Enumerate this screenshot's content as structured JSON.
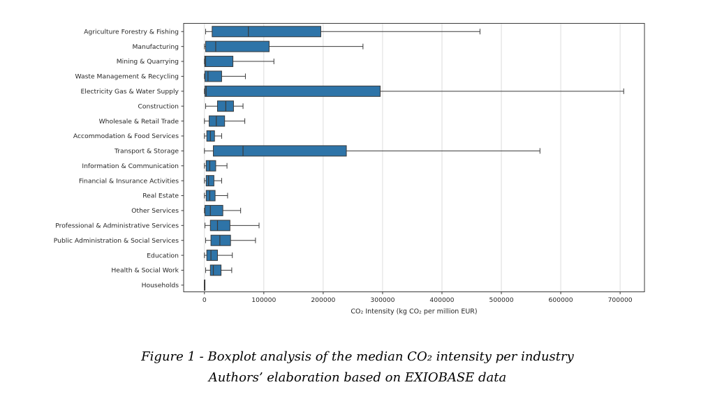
{
  "chart_data": {
    "type": "boxplot",
    "orientation": "horizontal",
    "title": "",
    "xlabel": "CO₂ Intensity (kg CO₂ per million EUR)",
    "ylabel": "",
    "xlim": [
      -35000,
      741000
    ],
    "x_ticks": [
      0,
      100000,
      200000,
      300000,
      400000,
      500000,
      600000,
      700000
    ],
    "x_tick_labels": [
      "0",
      "100000",
      "200000",
      "300000",
      "400000",
      "500000",
      "600000",
      "700000"
    ],
    "grid": "vertical-only",
    "legend": "none",
    "colors": {
      "box_fill": "#2e74a8",
      "line": "#3a3a3a",
      "grid": "#d9d9d9",
      "spine": "#3a3a3a",
      "text": "#262626"
    },
    "boxes": [
      {
        "category": "Agriculture Forestry & Fishing",
        "whisker_low": 2000,
        "q1": 13000,
        "median": 74000,
        "q3": 196000,
        "whisker_high": 464000
      },
      {
        "category": "Manufacturing",
        "whisker_low": 0,
        "q1": 2000,
        "median": 19000,
        "q3": 109000,
        "whisker_high": 267000
      },
      {
        "category": "Mining & Quarrying",
        "whisker_low": 0,
        "q1": 500,
        "median": 2000,
        "q3": 48000,
        "whisker_high": 117000
      },
      {
        "category": "Waste Management & Recycling",
        "whisker_low": 0,
        "q1": 1000,
        "median": 6000,
        "q3": 29000,
        "whisker_high": 69000
      },
      {
        "category": "Electricity Gas & Water Supply",
        "whisker_low": 0,
        "q1": 1000,
        "median": 3000,
        "q3": 296000,
        "whisker_high": 706000
      },
      {
        "category": "Construction",
        "whisker_low": 2000,
        "q1": 22000,
        "median": 36000,
        "q3": 49000,
        "whisker_high": 65000
      },
      {
        "category": "Wholesale & Retail Trade",
        "whisker_low": 0,
        "q1": 8000,
        "median": 20000,
        "q3": 34000,
        "whisker_high": 68000
      },
      {
        "category": "Accommodation & Food Services",
        "whisker_low": 0,
        "q1": 4000,
        "median": 10000,
        "q3": 17000,
        "whisker_high": 29000
      },
      {
        "category": "Transport & Storage",
        "whisker_low": 0,
        "q1": 15000,
        "median": 65000,
        "q3": 239000,
        "whisker_high": 565000
      },
      {
        "category": "Information & Communication",
        "whisker_low": 0,
        "q1": 3000,
        "median": 9000,
        "q3": 19000,
        "whisker_high": 38000
      },
      {
        "category": "Financial & Insurance Activities",
        "whisker_low": 0,
        "q1": 3000,
        "median": 7000,
        "q3": 16000,
        "whisker_high": 29000
      },
      {
        "category": "Real Estate",
        "whisker_low": 0,
        "q1": 3000,
        "median": 9000,
        "q3": 18000,
        "whisker_high": 39000
      },
      {
        "category": "Other Services",
        "whisker_low": 0,
        "q1": 1000,
        "median": 10000,
        "q3": 31000,
        "whisker_high": 61000
      },
      {
        "category": "Professional & Administrative Services",
        "whisker_low": 1000,
        "q1": 10000,
        "median": 22000,
        "q3": 43000,
        "whisker_high": 92000
      },
      {
        "category": "Public Administration & Social Services",
        "whisker_low": 2000,
        "q1": 11000,
        "median": 26000,
        "q3": 44000,
        "whisker_high": 86000
      },
      {
        "category": "Education",
        "whisker_low": 0,
        "q1": 4000,
        "median": 11000,
        "q3": 22000,
        "whisker_high": 47000
      },
      {
        "category": "Health & Social Work",
        "whisker_low": 2000,
        "q1": 10000,
        "median": 15000,
        "q3": 28000,
        "whisker_high": 46000
      },
      {
        "category": "Households",
        "whisker_low": 0,
        "q1": 0,
        "median": 0,
        "q3": 0,
        "whisker_high": 0
      }
    ]
  },
  "caption": {
    "line1": "Figure 1 - Boxplot analysis of the median CO₂ intensity per industry",
    "line2": "Authors’ elaboration based on EXIOBASE data"
  }
}
